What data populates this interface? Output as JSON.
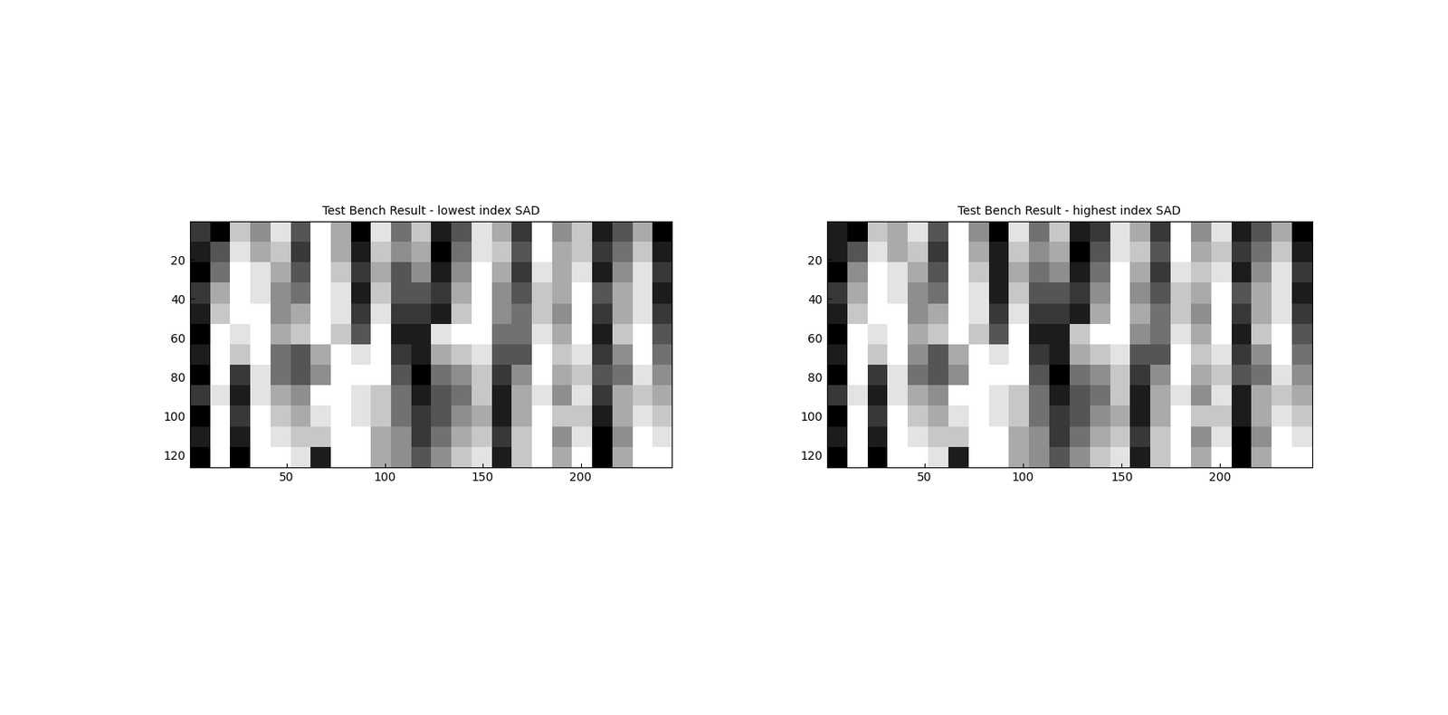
{
  "chart_data": [
    {
      "type": "heatmap",
      "title": "Test Bench Result - lowest index SAD",
      "xlim": [
        0.5,
        246.5
      ],
      "ylim": [
        126.5,
        0.5
      ],
      "xticks": [
        50,
        100,
        150,
        200
      ],
      "yticks": [
        20,
        40,
        60,
        80,
        100,
        120
      ],
      "color": "gray",
      "color_range": [
        0,
        9
      ],
      "cells": [
        [
          2,
          0,
          7,
          5,
          8,
          3,
          9,
          6,
          0,
          8,
          4,
          7,
          1,
          3,
          8,
          6,
          2,
          9,
          5,
          7,
          1,
          3,
          6,
          0
        ],
        [
          1,
          3,
          8,
          6,
          7,
          2,
          9,
          6,
          1,
          7,
          5,
          6,
          0,
          4,
          8,
          7,
          3,
          9,
          6,
          7,
          2,
          4,
          7,
          1
        ],
        [
          0,
          4,
          9,
          8,
          6,
          3,
          9,
          7,
          2,
          6,
          3,
          5,
          1,
          5,
          9,
          6,
          2,
          8,
          6,
          8,
          1,
          5,
          8,
          2
        ],
        [
          2,
          6,
          9,
          8,
          5,
          4,
          9,
          8,
          1,
          7,
          3,
          3,
          2,
          6,
          9,
          5,
          3,
          7,
          6,
          9,
          3,
          6,
          8,
          1
        ],
        [
          1,
          7,
          9,
          9,
          5,
          6,
          9,
          8,
          2,
          8,
          2,
          2,
          1,
          7,
          9,
          5,
          4,
          7,
          5,
          9,
          2,
          6,
          8,
          2
        ],
        [
          0,
          9,
          8,
          9,
          6,
          7,
          9,
          7,
          3,
          9,
          1,
          1,
          8,
          9,
          9,
          4,
          4,
          8,
          6,
          9,
          1,
          7,
          9,
          3
        ],
        [
          1,
          9,
          7,
          9,
          4,
          3,
          6,
          9,
          8,
          9,
          2,
          1,
          6,
          7,
          8,
          3,
          3,
          9,
          7,
          8,
          2,
          5,
          9,
          4
        ],
        [
          0,
          9,
          2,
          8,
          4,
          3,
          5,
          9,
          9,
          9,
          3,
          0,
          4,
          5,
          7,
          2,
          5,
          9,
          6,
          7,
          3,
          4,
          8,
          5
        ],
        [
          2,
          8,
          1,
          8,
          6,
          5,
          9,
          9,
          8,
          7,
          4,
          1,
          3,
          4,
          7,
          1,
          6,
          8,
          5,
          8,
          2,
          6,
          7,
          6
        ],
        [
          0,
          9,
          2,
          9,
          7,
          6,
          8,
          9,
          8,
          7,
          4,
          2,
          3,
          5,
          6,
          1,
          6,
          9,
          7,
          7,
          1,
          6,
          8,
          7
        ],
        [
          1,
          9,
          1,
          9,
          8,
          7,
          7,
          9,
          9,
          6,
          5,
          2,
          4,
          6,
          7,
          2,
          7,
          9,
          5,
          8,
          0,
          5,
          9,
          8
        ],
        [
          0,
          9,
          0,
          9,
          9,
          8,
          1,
          9,
          9,
          6,
          5,
          3,
          5,
          7,
          8,
          1,
          7,
          9,
          6,
          9,
          0,
          6,
          9,
          9
        ]
      ]
    },
    {
      "type": "heatmap",
      "title": "Test Bench Result - highest index SAD",
      "xlim": [
        0.5,
        246.5
      ],
      "ylim": [
        126.5,
        0.5
      ],
      "xticks": [
        50,
        100,
        150,
        200
      ],
      "yticks": [
        20,
        40,
        60,
        80,
        100,
        120
      ],
      "color": "gray",
      "color_range": [
        0,
        9
      ],
      "cells": [
        [
          1,
          0,
          7,
          6,
          8,
          3,
          9,
          5,
          0,
          8,
          4,
          7,
          1,
          2,
          8,
          6,
          2,
          9,
          5,
          8,
          1,
          3,
          6,
          0
        ],
        [
          1,
          3,
          8,
          6,
          7,
          2,
          9,
          6,
          1,
          7,
          5,
          6,
          0,
          3,
          8,
          7,
          3,
          9,
          6,
          7,
          2,
          4,
          7,
          1
        ],
        [
          0,
          5,
          9,
          8,
          6,
          3,
          9,
          7,
          1,
          6,
          4,
          5,
          1,
          4,
          9,
          6,
          2,
          8,
          7,
          8,
          1,
          5,
          8,
          2
        ],
        [
          2,
          6,
          9,
          8,
          5,
          4,
          9,
          8,
          1,
          7,
          3,
          3,
          2,
          5,
          9,
          5,
          3,
          7,
          6,
          9,
          3,
          6,
          8,
          1
        ],
        [
          1,
          7,
          9,
          9,
          5,
          6,
          9,
          8,
          2,
          8,
          2,
          2,
          1,
          6,
          9,
          6,
          4,
          7,
          5,
          9,
          2,
          6,
          8,
          2
        ],
        [
          0,
          9,
          8,
          9,
          6,
          7,
          9,
          7,
          3,
          9,
          1,
          1,
          7,
          9,
          9,
          5,
          4,
          8,
          6,
          9,
          1,
          7,
          9,
          3
        ],
        [
          1,
          9,
          7,
          9,
          5,
          3,
          6,
          9,
          8,
          9,
          2,
          1,
          6,
          7,
          8,
          3,
          3,
          9,
          7,
          8,
          2,
          5,
          9,
          4
        ],
        [
          0,
          9,
          2,
          8,
          4,
          3,
          5,
          9,
          9,
          9,
          3,
          0,
          4,
          5,
          7,
          2,
          5,
          9,
          6,
          7,
          3,
          4,
          8,
          5
        ],
        [
          2,
          8,
          1,
          8,
          6,
          5,
          9,
          9,
          8,
          7,
          4,
          1,
          3,
          4,
          7,
          1,
          6,
          8,
          5,
          8,
          1,
          6,
          7,
          6
        ],
        [
          0,
          9,
          2,
          9,
          7,
          6,
          8,
          9,
          8,
          7,
          4,
          2,
          3,
          5,
          6,
          1,
          6,
          9,
          7,
          7,
          1,
          6,
          8,
          7
        ],
        [
          1,
          9,
          1,
          9,
          8,
          7,
          7,
          9,
          9,
          6,
          5,
          2,
          4,
          6,
          7,
          2,
          7,
          9,
          5,
          8,
          0,
          5,
          9,
          8
        ],
        [
          0,
          9,
          0,
          9,
          9,
          8,
          1,
          9,
          9,
          6,
          5,
          3,
          5,
          7,
          8,
          1,
          7,
          9,
          6,
          9,
          0,
          6,
          9,
          9
        ]
      ]
    }
  ]
}
